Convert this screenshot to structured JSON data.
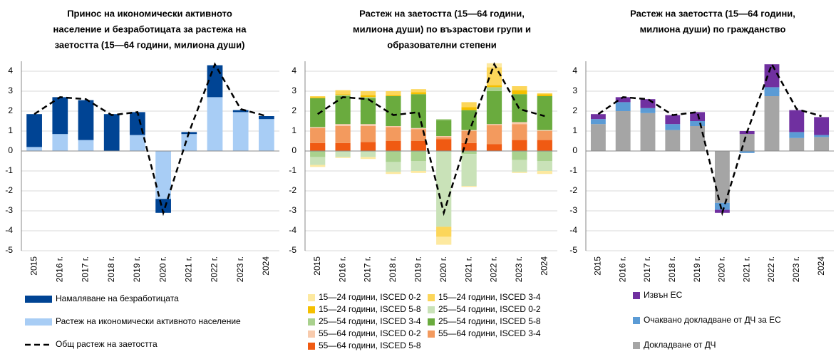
{
  "chart_data": [
    {
      "type": "bar",
      "stacked": true,
      "title": [
        "Принос на икономически активното",
        "население и безработицата за растежа на",
        "заетостта (15—64 години, милиона души)"
      ],
      "categories": [
        "2015",
        "2016 г.",
        "2017 г.",
        "2018 г.",
        "2019 г.",
        "2020 г.",
        "2021 г.",
        "2022 г.",
        "2023 г.",
        "2024"
      ],
      "series": [
        {
          "name": "Намаляване на безработицата",
          "color": "#004494",
          "values": [
            1.65,
            1.85,
            2.0,
            1.85,
            1.15,
            -0.7,
            0.1,
            1.6,
            0.1,
            0.15
          ]
        },
        {
          "name": "Растеж на икономически активното население",
          "color": "#a8cdf5",
          "values": [
            0.2,
            0.85,
            0.55,
            0,
            0.8,
            -2.4,
            0.85,
            2.7,
            1.95,
            1.6
          ]
        }
      ],
      "line": {
        "name": "Общ растеж на заетостта",
        "color": "#000000",
        "values": [
          1.85,
          2.7,
          2.6,
          1.8,
          1.95,
          -3.1,
          0.95,
          4.35,
          2.1,
          1.75
        ]
      },
      "ylim": [
        -5,
        4.5
      ],
      "yticks": [
        -5,
        -4,
        -3,
        -2,
        -1,
        0,
        1,
        2,
        3,
        4
      ],
      "grid": true
    },
    {
      "type": "bar",
      "stacked": true,
      "title": [
        "Растеж на заетостта (15—64 години,",
        "милиона души) по възрастови групи и",
        "образователни степени"
      ],
      "categories": [
        "2015",
        "2016 г.",
        "2017 г.",
        "2018 г.",
        "2019 г.",
        "2020 г.",
        "2021 г.",
        "2022 г.",
        "2023 г.",
        "2024"
      ],
      "series": [
        {
          "name": "15—24 години, ISCED 0-2",
          "color": "#fde9a0",
          "values": [
            -0.1,
            -0.05,
            -0.1,
            -0.1,
            -0.1,
            -0.4,
            -0.05,
            0.2,
            -0.05,
            -0.15
          ]
        },
        {
          "name": "15—24 години, ISCED 3-4",
          "color": "#fcd65a",
          "values": [
            0.05,
            0.2,
            0.2,
            0.2,
            0.15,
            -0.5,
            0.25,
            0.9,
            0.2,
            0.05
          ]
        },
        {
          "name": "15—24 години, ISCED 5-8",
          "color": "#f5c000",
          "values": [
            0.05,
            0.05,
            0.1,
            0.05,
            0.1,
            0,
            0.15,
            0.1,
            0.2,
            0.1
          ]
        },
        {
          "name": "25—54 години, ISCED 0-2",
          "color": "#c9e2b8",
          "values": [
            -0.4,
            -0.3,
            -0.3,
            -0.5,
            -0.5,
            -3.8,
            -1.6,
            0,
            -0.6,
            -0.5
          ]
        },
        {
          "name": "25—54 години, ISCED 3-4",
          "color": "#a9d18e",
          "values": [
            -0.3,
            0.05,
            0.05,
            -0.55,
            -0.5,
            0.05,
            -0.15,
            0.2,
            -0.45,
            -0.5
          ]
        },
        {
          "name": "25—54 години, ISCED 5-8",
          "color": "#6aab3e",
          "values": [
            1.45,
            1.4,
            1.3,
            1.5,
            1.7,
            0.8,
            1.0,
            1.65,
            1.4,
            1.7
          ]
        },
        {
          "name": "55—64 години, ISCED 0-2",
          "color": "#f8cbad",
          "values": [
            0.05,
            0.1,
            0.1,
            0.05,
            0.05,
            0.05,
            0.05,
            0.05,
            0.1,
            0.05
          ]
        },
        {
          "name": "55—64 години, ISCED 3-4",
          "color": "#f39a5e",
          "values": [
            0.75,
            0.85,
            0.8,
            0.7,
            0.6,
            0.1,
            0.6,
            0.95,
            0.8,
            0.45
          ]
        },
        {
          "name": "55—64 години, ISCED 5-8",
          "color": "#f05a12",
          "values": [
            0.4,
            0.4,
            0.45,
            0.5,
            0.5,
            0.6,
            0.4,
            0.35,
            0.55,
            0.55
          ]
        }
      ],
      "line": {
        "color": "#000000",
        "values": [
          1.85,
          2.7,
          2.6,
          1.8,
          1.95,
          -3.1,
          0.95,
          4.35,
          2.1,
          1.75
        ]
      },
      "ylim": [
        -5,
        4.5
      ],
      "yticks": [
        -5,
        -4,
        -3,
        -2,
        -1,
        0,
        1,
        2,
        3,
        4
      ],
      "grid": true
    },
    {
      "type": "bar",
      "stacked": true,
      "title": [
        "Растеж на заетостта (15—64 години,",
        "милиона души) по гражданство"
      ],
      "categories": [
        "2015",
        "2016 г.",
        "2017 г.",
        "2018 г.",
        "2019 г.",
        "2020 г.",
        "2021 г.",
        "2022 г.",
        "2023 г.",
        "2024"
      ],
      "series": [
        {
          "name": "Извън ЕС",
          "color": "#7030a0",
          "values": [
            0.25,
            0.25,
            0.45,
            0.45,
            0.45,
            -0.15,
            0.15,
            1.15,
            1.1,
            0.9
          ]
        },
        {
          "name": "Очаквано докладване от ДЧ за ЕС",
          "color": "#5b9bd5",
          "values": [
            0.25,
            0.45,
            0.25,
            0.3,
            0.25,
            -0.35,
            -0.1,
            0.45,
            0.3,
            0.1
          ]
        },
        {
          "name": "Докладване от ДЧ",
          "color": "#a5a5a5",
          "values": [
            1.35,
            2.0,
            1.9,
            1.05,
            1.25,
            -2.6,
            0.85,
            2.75,
            0.65,
            0.7
          ]
        }
      ],
      "line": {
        "color": "#000000",
        "values": [
          1.85,
          2.7,
          2.6,
          1.8,
          1.95,
          -3.1,
          0.95,
          4.35,
          2.1,
          1.75
        ]
      },
      "ylim": [
        -5,
        4.5
      ],
      "yticks": [
        -5,
        -4,
        -3,
        -2,
        -1,
        0,
        1,
        2,
        3,
        4
      ],
      "grid": true
    }
  ]
}
